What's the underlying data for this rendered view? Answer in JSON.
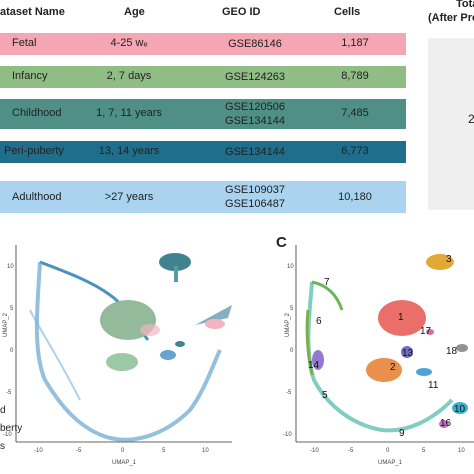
{
  "table": {
    "headers": {
      "name": "ataset Name",
      "age": "Age",
      "geo": "GEO ID",
      "cells": "Cells",
      "total_line1": "Tota",
      "total_line2": "(After Pre"
    },
    "rows": [
      {
        "name": "Fetal",
        "age": "4-25 wₑ",
        "geo1": "GSE86146",
        "geo2": "",
        "cells": "1,187",
        "color": "#f4a6b2",
        "text_color": "#222222"
      },
      {
        "name": "Infancy",
        "age": "2, 7 days",
        "geo1": "GSE124263",
        "geo2": "",
        "cells": "8,789",
        "color": "#8fbd85",
        "text_color": "#222222"
      },
      {
        "name": "Childhood",
        "age": "1, 7, 11 years",
        "geo1": "GSE120506",
        "geo2": "GSE134144",
        "cells": "7,485",
        "color": "#4f8f86",
        "text_color": "#222222"
      },
      {
        "name": "Peri-puberty",
        "age": "13, 14 years",
        "geo1": "GSE134144",
        "geo2": "",
        "cells": "6,773",
        "color": "#1f6e8c",
        "text_color": "#222222"
      },
      {
        "name": "Adulthood",
        "age": ">27 years",
        "geo1": "GSE109037",
        "geo2": "GSE106487",
        "cells": "10,180",
        "color": "#a9d3ee",
        "text_color": "#222222"
      }
    ],
    "total_value": "2"
  },
  "panel_c_letter": "C",
  "legend_fragments": [
    "d",
    "berty",
    "s"
  ],
  "umap_left": {
    "xlabel": "UMAP_1",
    "ylabel": "UMAP_2",
    "xticks": [
      "-10",
      "-5",
      "0",
      "5",
      "10"
    ],
    "yticks": [
      "10",
      "5",
      "0",
      "-5",
      "-10"
    ]
  },
  "umap_right": {
    "xlabel": "UMAP_1",
    "ylabel": "UMAP_2",
    "xticks": [
      "-10",
      "-5",
      "0",
      "5",
      "10"
    ],
    "yticks": [
      "10",
      "5",
      "0",
      "-5",
      "-10"
    ],
    "cluster_labels": [
      {
        "text": "1",
        "color": "#e8605a"
      },
      {
        "text": "2",
        "color": "#e8843a"
      },
      {
        "text": "3",
        "color": "#e0a020"
      },
      {
        "text": "5",
        "color": "#7f7fbf"
      },
      {
        "text": "6",
        "color": "#6aa83a"
      },
      {
        "text": "7",
        "color": "#5ab04a"
      },
      {
        "text": "9",
        "color": "#3ab0a0"
      },
      {
        "text": "10",
        "color": "#2aa6c8"
      },
      {
        "text": "11",
        "color": "#3a9ad0"
      },
      {
        "text": "13",
        "color": "#6060c0"
      },
      {
        "text": "14",
        "color": "#8a6ad0"
      },
      {
        "text": "16",
        "color": "#c060c0"
      },
      {
        "text": "17",
        "color": "#d060a0"
      },
      {
        "text": "18",
        "color": "#888888"
      }
    ]
  },
  "colors": {
    "blue_cells": "#2e7fb5",
    "green_cells": "#7fae8a",
    "teal_cells": "#1f6e7c",
    "pink_cells": "#f0a8b8"
  }
}
